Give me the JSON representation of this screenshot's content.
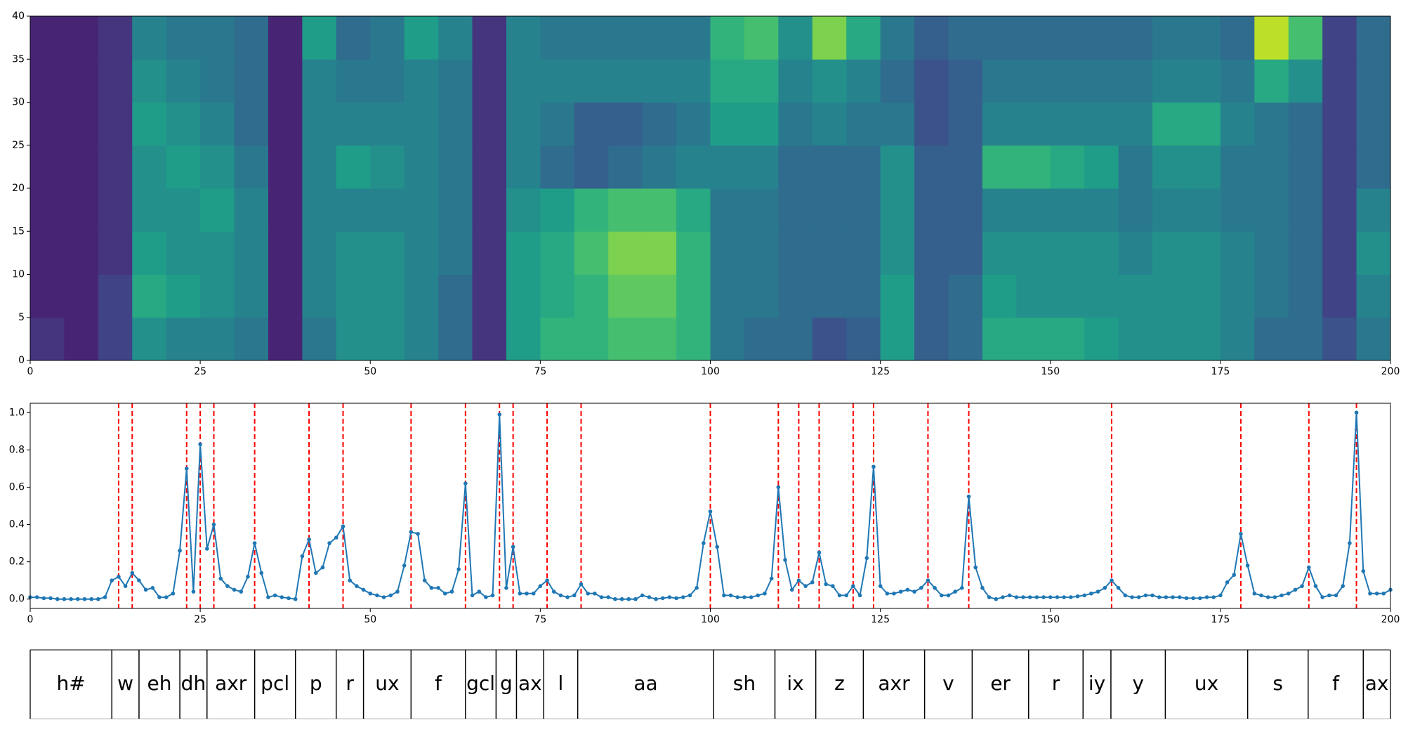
{
  "chart_data": [
    {
      "type": "heatmap",
      "colormap": "viridis",
      "xlim": [
        0,
        200
      ],
      "ylim": [
        0,
        40
      ],
      "xticks": [
        0,
        25,
        50,
        75,
        100,
        125,
        150,
        175,
        200
      ],
      "yticks": [
        0,
        5,
        10,
        15,
        20,
        25,
        30,
        35,
        40
      ],
      "z": [
        [
          0.15,
          0.1,
          0.2,
          0.5,
          0.45,
          0.45,
          0.4,
          0.1,
          0.4,
          0.5,
          0.5,
          0.45,
          0.35,
          0.15,
          0.55,
          0.65,
          0.65,
          0.7,
          0.7,
          0.65,
          0.4,
          0.35,
          0.35,
          0.25,
          0.3,
          0.55,
          0.3,
          0.35,
          0.6,
          0.6,
          0.6,
          0.55,
          0.5,
          0.5,
          0.5,
          0.45,
          0.35,
          0.35,
          0.25,
          0.4
        ],
        [
          0.1,
          0.1,
          0.2,
          0.6,
          0.55,
          0.5,
          0.45,
          0.1,
          0.45,
          0.5,
          0.5,
          0.45,
          0.35,
          0.15,
          0.55,
          0.6,
          0.65,
          0.75,
          0.75,
          0.65,
          0.4,
          0.4,
          0.35,
          0.35,
          0.35,
          0.55,
          0.3,
          0.35,
          0.55,
          0.5,
          0.5,
          0.5,
          0.5,
          0.5,
          0.5,
          0.45,
          0.4,
          0.35,
          0.2,
          0.45
        ],
        [
          0.1,
          0.1,
          0.15,
          0.55,
          0.5,
          0.5,
          0.45,
          0.1,
          0.45,
          0.5,
          0.5,
          0.45,
          0.4,
          0.15,
          0.55,
          0.6,
          0.7,
          0.8,
          0.8,
          0.65,
          0.4,
          0.4,
          0.35,
          0.35,
          0.35,
          0.5,
          0.3,
          0.3,
          0.5,
          0.5,
          0.5,
          0.5,
          0.45,
          0.5,
          0.5,
          0.45,
          0.4,
          0.35,
          0.2,
          0.5
        ],
        [
          0.1,
          0.1,
          0.15,
          0.5,
          0.5,
          0.55,
          0.45,
          0.1,
          0.45,
          0.45,
          0.45,
          0.45,
          0.4,
          0.15,
          0.5,
          0.55,
          0.65,
          0.7,
          0.7,
          0.6,
          0.4,
          0.4,
          0.35,
          0.35,
          0.35,
          0.5,
          0.3,
          0.3,
          0.45,
          0.45,
          0.45,
          0.45,
          0.4,
          0.45,
          0.45,
          0.4,
          0.4,
          0.35,
          0.2,
          0.45
        ],
        [
          0.1,
          0.1,
          0.15,
          0.5,
          0.55,
          0.5,
          0.4,
          0.1,
          0.45,
          0.55,
          0.5,
          0.45,
          0.4,
          0.15,
          0.45,
          0.35,
          0.3,
          0.35,
          0.4,
          0.45,
          0.45,
          0.45,
          0.35,
          0.35,
          0.35,
          0.5,
          0.3,
          0.3,
          0.65,
          0.65,
          0.6,
          0.55,
          0.4,
          0.5,
          0.5,
          0.4,
          0.4,
          0.35,
          0.2,
          0.35
        ],
        [
          0.1,
          0.1,
          0.15,
          0.55,
          0.5,
          0.45,
          0.35,
          0.1,
          0.45,
          0.45,
          0.45,
          0.45,
          0.4,
          0.15,
          0.45,
          0.4,
          0.3,
          0.3,
          0.35,
          0.4,
          0.55,
          0.55,
          0.4,
          0.45,
          0.4,
          0.4,
          0.25,
          0.3,
          0.45,
          0.45,
          0.45,
          0.45,
          0.45,
          0.6,
          0.6,
          0.45,
          0.4,
          0.35,
          0.2,
          0.35
        ],
        [
          0.1,
          0.1,
          0.15,
          0.5,
          0.45,
          0.4,
          0.35,
          0.1,
          0.45,
          0.4,
          0.4,
          0.45,
          0.4,
          0.15,
          0.45,
          0.45,
          0.45,
          0.45,
          0.45,
          0.45,
          0.6,
          0.6,
          0.45,
          0.5,
          0.45,
          0.35,
          0.25,
          0.3,
          0.4,
          0.4,
          0.4,
          0.4,
          0.4,
          0.45,
          0.45,
          0.4,
          0.6,
          0.5,
          0.2,
          0.35
        ],
        [
          0.1,
          0.1,
          0.15,
          0.45,
          0.4,
          0.4,
          0.35,
          0.1,
          0.55,
          0.35,
          0.4,
          0.55,
          0.45,
          0.15,
          0.45,
          0.4,
          0.4,
          0.4,
          0.4,
          0.4,
          0.65,
          0.7,
          0.5,
          0.8,
          0.6,
          0.4,
          0.3,
          0.35,
          0.35,
          0.35,
          0.35,
          0.35,
          0.35,
          0.4,
          0.4,
          0.35,
          0.9,
          0.7,
          0.2,
          0.35
        ]
      ]
    },
    {
      "type": "line",
      "color": "#1f77b4",
      "boundary_color": "#ff0000",
      "xlim": [
        0,
        200
      ],
      "ylim": [
        -0.05,
        1.05
      ],
      "xticks": [
        0,
        25,
        50,
        75,
        100,
        125,
        150,
        175,
        200
      ],
      "yticks": [
        {
          "value": 0,
          "label": "0.0"
        },
        {
          "value": 0.2,
          "label": "0.2"
        },
        {
          "value": 0.4,
          "label": "0.4"
        },
        {
          "value": 0.6,
          "label": "0.6"
        },
        {
          "value": 0.8,
          "label": "0.8"
        },
        {
          "value": 1,
          "label": "1.0"
        }
      ],
      "boundaries": [
        13,
        15,
        23,
        25,
        27,
        33,
        41,
        46,
        56,
        64,
        69,
        71,
        76,
        81,
        100,
        110,
        113,
        116,
        121,
        124,
        132,
        138,
        159,
        178,
        188,
        195
      ],
      "values": [
        0.01,
        0.01,
        0.005,
        0.005,
        0,
        0,
        0,
        0,
        0,
        0,
        0,
        0.01,
        0.1,
        0.12,
        0.07,
        0.14,
        0.1,
        0.05,
        0.06,
        0.01,
        0.01,
        0.03,
        0.26,
        0.7,
        0.04,
        0.83,
        0.27,
        0.4,
        0.11,
        0.07,
        0.05,
        0.04,
        0.12,
        0.3,
        0.14,
        0.01,
        0.02,
        0.01,
        0.005,
        0,
        0.23,
        0.32,
        0.14,
        0.17,
        0.3,
        0.33,
        0.39,
        0.1,
        0.07,
        0.05,
        0.03,
        0.02,
        0.01,
        0.02,
        0.04,
        0.18,
        0.36,
        0.35,
        0.1,
        0.06,
        0.06,
        0.03,
        0.04,
        0.16,
        0.62,
        0.02,
        0.04,
        0.01,
        0.02,
        0.99,
        0.06,
        0.28,
        0.03,
        0.03,
        0.03,
        0.07,
        0.1,
        0.04,
        0.02,
        0.01,
        0.02,
        0.08,
        0.03,
        0.03,
        0.01,
        0.01,
        0,
        0,
        0,
        0,
        0.02,
        0.01,
        0,
        0.005,
        0.01,
        0.005,
        0.01,
        0.02,
        0.06,
        0.3,
        0.47,
        0.28,
        0.02,
        0.02,
        0.01,
        0.01,
        0.01,
        0.02,
        0.03,
        0.11,
        0.6,
        0.21,
        0.05,
        0.1,
        0.07,
        0.09,
        0.25,
        0.08,
        0.07,
        0.02,
        0.02,
        0.07,
        0.02,
        0.22,
        0.71,
        0.07,
        0.03,
        0.03,
        0.04,
        0.05,
        0.04,
        0.06,
        0.1,
        0.06,
        0.02,
        0.02,
        0.04,
        0.06,
        0.55,
        0.17,
        0.06,
        0.01,
        0,
        0.01,
        0.02,
        0.01,
        0.01,
        0.01,
        0.01,
        0.01,
        0.01,
        0.01,
        0.01,
        0.01,
        0.015,
        0.02,
        0.03,
        0.04,
        0.06,
        0.1,
        0.06,
        0.02,
        0.01,
        0.01,
        0.02,
        0.02,
        0.01,
        0.01,
        0.01,
        0.01,
        0.005,
        0.005,
        0.005,
        0.01,
        0.01,
        0.02,
        0.09,
        0.13,
        0.35,
        0.18,
        0.03,
        0.02,
        0.01,
        0.01,
        0.02,
        0.03,
        0.05,
        0.07,
        0.17,
        0.07,
        0.01,
        0.02,
        0.02,
        0.07,
        0.3,
        1.0,
        0.15,
        0.03,
        0.03,
        0.03,
        0.05
      ]
    },
    {
      "type": "segmentation",
      "xlim": [
        0,
        200
      ],
      "segments": [
        {
          "label": "h#",
          "start": 0,
          "end": 12
        },
        {
          "label": "w",
          "start": 12,
          "end": 16
        },
        {
          "label": "eh",
          "start": 16,
          "end": 22
        },
        {
          "label": "dh",
          "start": 22,
          "end": 26
        },
        {
          "label": "axr",
          "start": 26,
          "end": 33
        },
        {
          "label": "pcl",
          "start": 33,
          "end": 39
        },
        {
          "label": "p",
          "start": 39,
          "end": 45
        },
        {
          "label": "r",
          "start": 45,
          "end": 49
        },
        {
          "label": "ux",
          "start": 49,
          "end": 56
        },
        {
          "label": "f",
          "start": 56,
          "end": 64
        },
        {
          "label": "gcl",
          "start": 64,
          "end": 68.5
        },
        {
          "label": "g",
          "start": 68.5,
          "end": 71.5
        },
        {
          "label": "ax",
          "start": 71.5,
          "end": 75.5
        },
        {
          "label": "l",
          "start": 75.5,
          "end": 80.5
        },
        {
          "label": "aa",
          "start": 80.5,
          "end": 100.5
        },
        {
          "label": "sh",
          "start": 100.5,
          "end": 109.5
        },
        {
          "label": "ix",
          "start": 109.5,
          "end": 115.5
        },
        {
          "label": "z",
          "start": 115.5,
          "end": 122.5
        },
        {
          "label": "axr",
          "start": 122.5,
          "end": 131.5
        },
        {
          "label": "v",
          "start": 131.5,
          "end": 138.5
        },
        {
          "label": "er",
          "start": 138.5,
          "end": 146.8
        },
        {
          "label": "r",
          "start": 146.8,
          "end": 154.8
        },
        {
          "label": "iy",
          "start": 154.8,
          "end": 158.9
        },
        {
          "label": "y",
          "start": 158.9,
          "end": 166.9
        },
        {
          "label": "ux",
          "start": 166.9,
          "end": 179
        },
        {
          "label": "s",
          "start": 179,
          "end": 187.9
        },
        {
          "label": "f",
          "start": 187.9,
          "end": 196
        },
        {
          "label": "ax",
          "start": 196,
          "end": 200
        }
      ]
    }
  ]
}
